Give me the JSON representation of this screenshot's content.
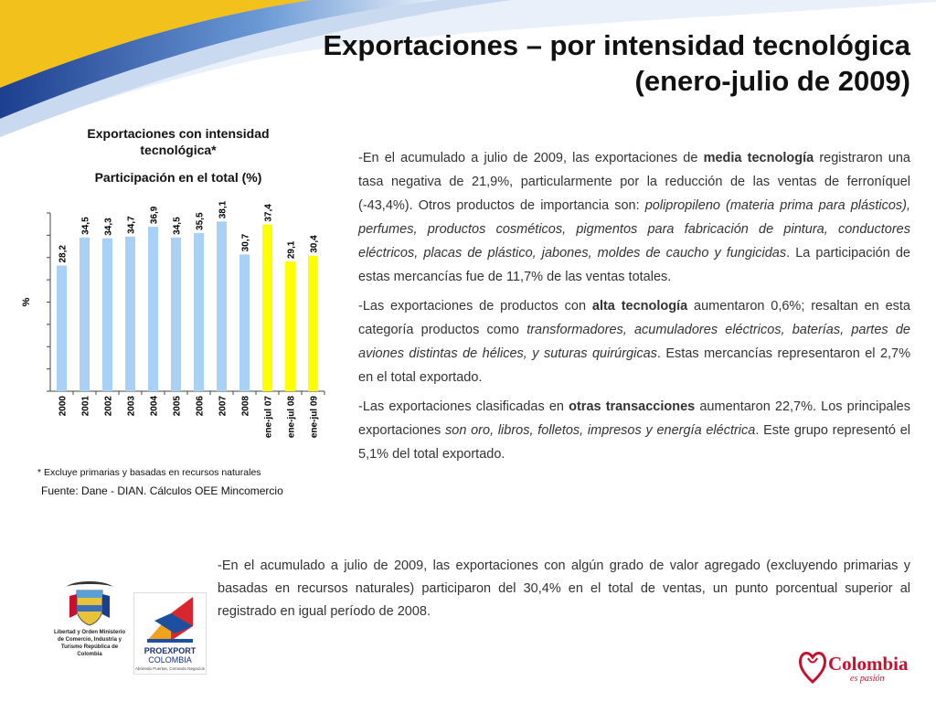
{
  "title": {
    "line1": "Exportaciones – por intensidad tecnológica",
    "line2": "(enero-julio de 2009)"
  },
  "chart_title": "Exportaciones con intensidad tecnológica*",
  "chart_subtitle": "Participación en el total (%)",
  "chart_data": {
    "type": "bar",
    "ylabel": "%",
    "ylim": [
      0,
      40
    ],
    "categories": [
      "2000",
      "2001",
      "2002",
      "2003",
      "2004",
      "2005",
      "2006",
      "2007",
      "2008",
      "ene-jul 07",
      "ene-jul 08",
      "ene-jul 09"
    ],
    "values": [
      28.2,
      34.5,
      34.3,
      34.7,
      36.9,
      34.5,
      35.5,
      38.1,
      30.7,
      37.4,
      29.1,
      30.4
    ],
    "value_labels": [
      "28,2",
      "34,5",
      "34,3",
      "34,7",
      "36,9",
      "34,5",
      "35,5",
      "38,1",
      "30,7",
      "37,4",
      "29,1",
      "30,4"
    ],
    "colors": [
      "#a8d1f5",
      "#a8d1f5",
      "#a8d1f5",
      "#a8d1f5",
      "#a8d1f5",
      "#a8d1f5",
      "#a8d1f5",
      "#a8d1f5",
      "#a8d1f5",
      "#ffff00",
      "#ffff00",
      "#ffff00"
    ]
  },
  "footnote": "* Excluye primarias y basadas en recursos naturales",
  "source": "Fuente: Dane - DIAN. Cálculos OEE Mincomercio",
  "paragraphs": {
    "p1": {
      "a": "-En el acumulado a julio de 2009, las exportaciones de ",
      "b": "media tecnología",
      "c": " registraron una tasa negativa de 21,9%, particularmente por la reducción de las ventas de ferroníquel (-43,4%). Otros productos de importancia son: ",
      "d": "polipropileno (materia prima para plásticos), perfumes, productos cosméticos, pigmentos para fabricación de pintura, conductores eléctricos, placas de plástico, jabones, moldes de caucho y fungicidas",
      "e": ". La participación de estas mercancías fue de 11,7% de las ventas totales."
    },
    "p2": {
      "a": "-Las exportaciones de productos con ",
      "b": "alta tecnología",
      "c": " aumentaron 0,6%; resaltan en esta categoría productos como ",
      "d": "transformadores, acumuladores eléctricos, baterías, partes de aviones distintas de hélices, y suturas quirúrgicas",
      "e": ". Estas mercancías representaron el 2,7% en el total exportado."
    },
    "p3": {
      "a": "-Las exportaciones clasificadas en ",
      "b": "otras transacciones",
      "c": " aumentaron 22,7%. Los principales exportaciones ",
      "d": "son oro, libros, folletos, impresos y energía eléctrica",
      "e": ". Este grupo representó el 5,1% del total exportado."
    }
  },
  "bottom_text": "-En el acumulado a julio de 2009, las exportaciones con algún grado de valor agregado (excluyendo primarias y basadas en recursos naturales) participaron del 30,4% en el total de ventas, un punto porcentual superior al registrado en igual período de 2008.",
  "logos": {
    "ministry_caption": "Libertad y Orden Ministerio de Comercio, Industria y Turismo República de Colombia",
    "proexport_name": "PROEXPORT",
    "proexport_sub": "COLOMBIA",
    "proexport_tag": "Abriendo Puertas, Cerrando Negocios",
    "colombia_word": "Colombia",
    "colombia_tag": "es pasión"
  }
}
